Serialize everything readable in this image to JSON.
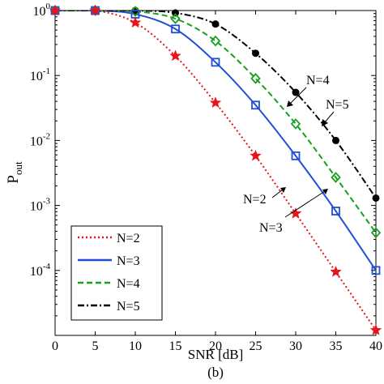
{
  "chart_data": {
    "type": "line",
    "caption": "(b)",
    "xlabel": "SNR [dB]",
    "ylabel": {
      "main": "P",
      "sub": "out"
    },
    "xlim": [
      0,
      40
    ],
    "ylim": [
      1e-05,
      1
    ],
    "yscale": "log",
    "grid": false,
    "legend_position": "bottom-left",
    "x_ticks": [
      "0",
      "5",
      "10",
      "15",
      "20",
      "25",
      "30",
      "35",
      "40"
    ],
    "y_ticks": [
      {
        "base": "10",
        "exp": "0"
      },
      {
        "base": "10",
        "exp": "-1"
      },
      {
        "base": "10",
        "exp": "-2"
      },
      {
        "base": "10",
        "exp": "-3"
      },
      {
        "base": "10",
        "exp": "-4"
      }
    ],
    "x": [
      0,
      5,
      10,
      15,
      20,
      25,
      30,
      35,
      40
    ],
    "series": [
      {
        "name": "N=2",
        "color": "#e8141c",
        "dash": "dotted",
        "marker": "star",
        "values": [
          1,
          1,
          0.65,
          0.2,
          0.038,
          0.0058,
          0.00075,
          9.5e-05,
          1.2e-05
        ]
      },
      {
        "name": "N=3",
        "color": "#1f4fd6",
        "dash": "solid",
        "marker": "square",
        "values": [
          1,
          1,
          0.88,
          0.52,
          0.16,
          0.035,
          0.0058,
          0.00082,
          0.0001
        ]
      },
      {
        "name": "N=4",
        "color": "#16a01c",
        "dash": "dashed",
        "marker": "diamond",
        "values": [
          1,
          1,
          0.97,
          0.75,
          0.34,
          0.09,
          0.018,
          0.0027,
          0.00038
        ]
      },
      {
        "name": "N=5",
        "color": "#000000",
        "dash": "dashdot",
        "marker": "circle",
        "values": [
          1,
          1,
          1.0,
          0.92,
          0.62,
          0.22,
          0.055,
          0.01,
          0.0013
        ]
      }
    ],
    "annotations": [
      {
        "text": "N=4",
        "points_to_series": "N=4"
      },
      {
        "text": "N=5",
        "points_to_series": "N=5"
      },
      {
        "text": "N=2",
        "points_to_series": "N=2"
      },
      {
        "text": "N=3",
        "points_to_series": "N=3"
      }
    ]
  }
}
